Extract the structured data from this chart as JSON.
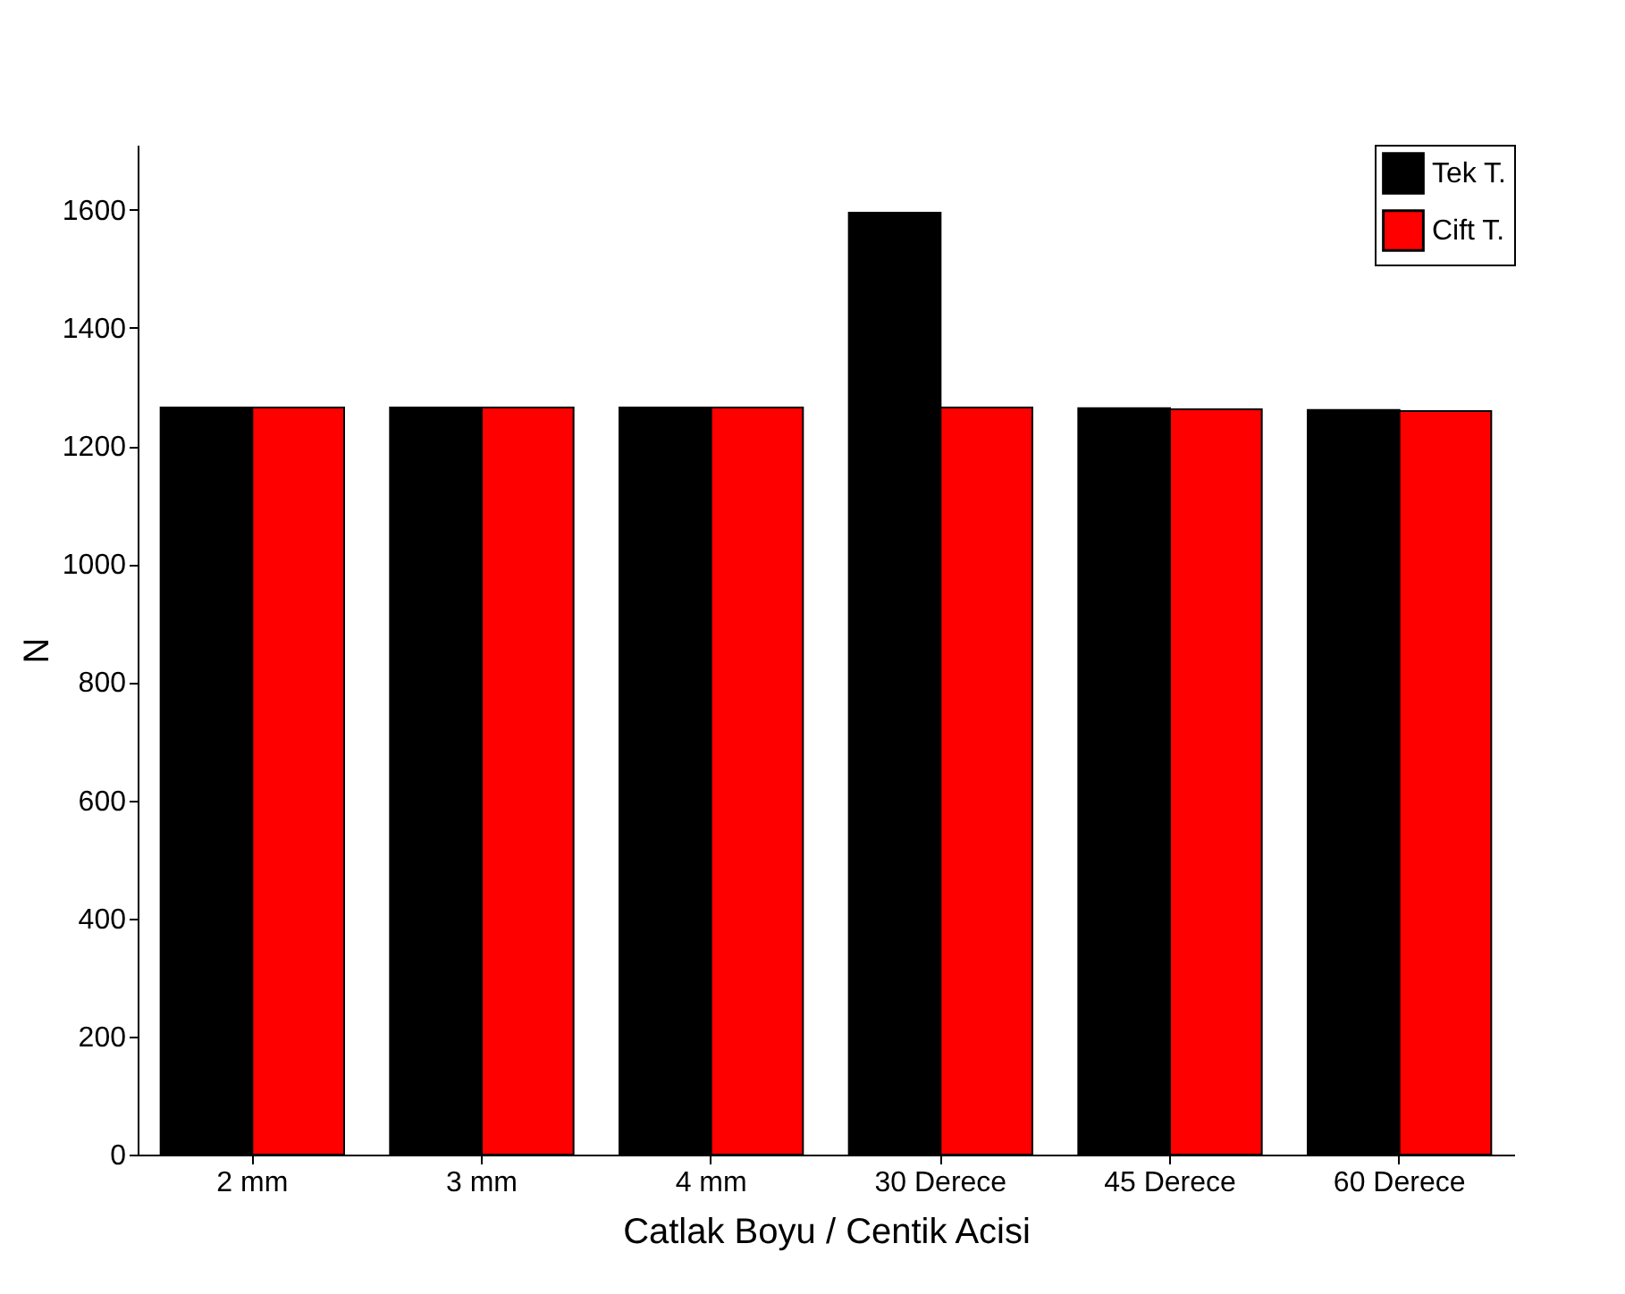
{
  "chart_data": {
    "type": "bar",
    "xlabel": "Catlak Boyu / Centik Acisi",
    "ylabel": "N",
    "categories": [
      "2 mm",
      "3 mm",
      "4 mm",
      "30 Derece",
      "45 Derece",
      "60 Derece"
    ],
    "series": [
      {
        "name": "Tek T.",
        "color": "#000000",
        "values": [
          1265,
          1265,
          1265,
          1595,
          1264,
          1261
        ]
      },
      {
        "name": "Cift T.",
        "color": "#ff0000",
        "values": [
          1265,
          1265,
          1265,
          1265,
          1262,
          1259
        ]
      }
    ],
    "ylim": [
      0,
      1710
    ],
    "yticks": [
      0,
      200,
      400,
      600,
      800,
      1000,
      1200,
      1400,
      1600
    ],
    "grid": false,
    "legend": "top right"
  }
}
